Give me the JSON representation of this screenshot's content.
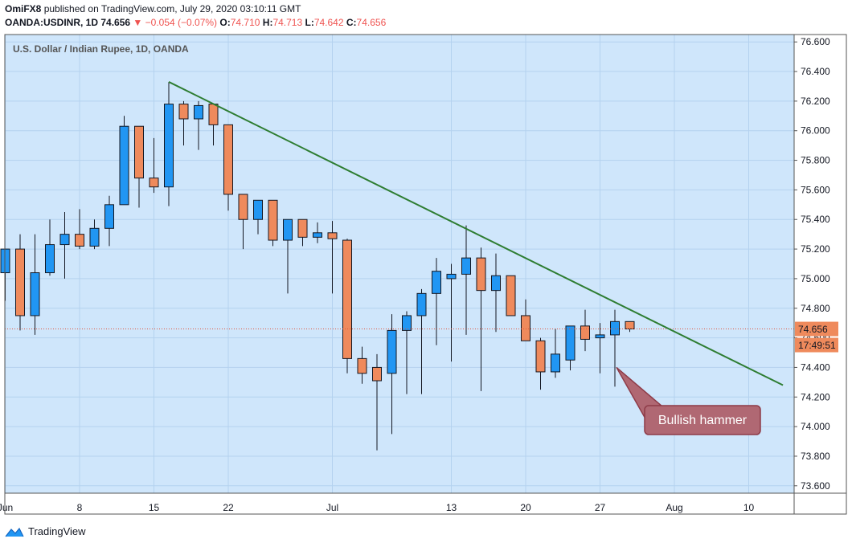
{
  "header": {
    "publisher": "OmiFX8",
    "published_text": "published on TradingView.com, July 29, 2020 03:10:11 GMT",
    "symbol": "OANDA:USDINR, 1D",
    "last": "74.656",
    "change_arrow": "▼",
    "change": "−0.054 (−0.07%)",
    "o_label": "O:",
    "o_value": "74.710",
    "h_label": "H:",
    "h_value": "74.713",
    "l_label": "L:",
    "l_value": "74.642",
    "c_label": "C:",
    "c_value": "74.656"
  },
  "colors": {
    "background": "#cfe6fb",
    "grid": "#b4d2ef",
    "up": "#2196f3",
    "down": "#ef8a5c",
    "wick": "#131722",
    "trendline": "#2e7d32",
    "price_tag": "#ef8a5c",
    "callout_fill": "#b06873",
    "callout_border": "#8e3b48"
  },
  "chart_data": {
    "type": "candlestick",
    "title": "U.S. Dollar / Indian Rupee, 1D, OANDA",
    "ylim": [
      73.55,
      76.65
    ],
    "y_ticks": [
      "76.600",
      "76.400",
      "76.200",
      "76.000",
      "75.800",
      "75.600",
      "75.400",
      "75.200",
      "75.000",
      "74.800",
      "74.600",
      "74.400",
      "74.200",
      "74.000",
      "73.800",
      "73.600"
    ],
    "x_ticks": [
      {
        "label": "Jun",
        "index": 0
      },
      {
        "label": "8",
        "index": 5
      },
      {
        "label": "15",
        "index": 10
      },
      {
        "label": "22",
        "index": 15
      },
      {
        "label": "Jul",
        "index": 22
      },
      {
        "label": "13",
        "index": 30
      },
      {
        "label": "20",
        "index": 35
      },
      {
        "label": "27",
        "index": 40
      },
      {
        "label": "Aug",
        "index": 45
      },
      {
        "label": "10",
        "index": 50
      }
    ],
    "candles": [
      {
        "o": 75.04,
        "h": 75.2,
        "l": 74.85,
        "c": 75.2
      },
      {
        "o": 75.2,
        "h": 75.3,
        "l": 74.65,
        "c": 74.75
      },
      {
        "o": 74.75,
        "h": 75.3,
        "l": 74.62,
        "c": 75.04
      },
      {
        "o": 75.04,
        "h": 75.4,
        "l": 75.02,
        "c": 75.23
      },
      {
        "o": 75.23,
        "h": 75.45,
        "l": 75.0,
        "c": 75.3
      },
      {
        "o": 75.3,
        "h": 75.47,
        "l": 75.2,
        "c": 75.22
      },
      {
        "o": 75.22,
        "h": 75.4,
        "l": 75.2,
        "c": 75.34
      },
      {
        "o": 75.34,
        "h": 75.56,
        "l": 75.22,
        "c": 75.5
      },
      {
        "o": 75.5,
        "h": 76.1,
        "l": 75.5,
        "c": 76.03
      },
      {
        "o": 76.03,
        "h": 76.02,
        "l": 75.48,
        "c": 75.68
      },
      {
        "o": 75.68,
        "h": 75.95,
        "l": 75.58,
        "c": 75.62
      },
      {
        "o": 75.62,
        "h": 76.33,
        "l": 75.49,
        "c": 76.18
      },
      {
        "o": 76.18,
        "h": 76.2,
        "l": 75.9,
        "c": 76.08
      },
      {
        "o": 76.08,
        "h": 76.2,
        "l": 75.87,
        "c": 76.17
      },
      {
        "o": 76.18,
        "h": 76.18,
        "l": 75.9,
        "c": 76.04
      },
      {
        "o": 76.04,
        "h": 76.03,
        "l": 75.46,
        "c": 75.57
      },
      {
        "o": 75.57,
        "h": 75.57,
        "l": 75.2,
        "c": 75.4
      },
      {
        "o": 75.4,
        "h": 75.53,
        "l": 75.3,
        "c": 75.53
      },
      {
        "o": 75.53,
        "h": 75.52,
        "l": 75.22,
        "c": 75.26
      },
      {
        "o": 75.26,
        "h": 75.4,
        "l": 74.9,
        "c": 75.4
      },
      {
        "o": 75.4,
        "h": 75.4,
        "l": 75.22,
        "c": 75.28
      },
      {
        "o": 75.28,
        "h": 75.38,
        "l": 75.24,
        "c": 75.31
      },
      {
        "o": 75.31,
        "h": 75.39,
        "l": 74.9,
        "c": 75.27
      },
      {
        "o": 75.26,
        "h": 75.27,
        "l": 74.36,
        "c": 74.46
      },
      {
        "o": 74.46,
        "h": 74.54,
        "l": 74.29,
        "c": 74.36
      },
      {
        "o": 74.4,
        "h": 74.49,
        "l": 73.84,
        "c": 74.31
      },
      {
        "o": 74.36,
        "h": 74.76,
        "l": 73.95,
        "c": 74.65
      },
      {
        "o": 74.65,
        "h": 74.78,
        "l": 74.22,
        "c": 74.75
      },
      {
        "o": 74.75,
        "h": 74.93,
        "l": 74.22,
        "c": 74.9
      },
      {
        "o": 74.9,
        "h": 75.14,
        "l": 74.55,
        "c": 75.05
      },
      {
        "o": 75.0,
        "h": 75.1,
        "l": 74.44,
        "c": 75.03
      },
      {
        "o": 75.03,
        "h": 75.36,
        "l": 74.62,
        "c": 75.14
      },
      {
        "o": 75.14,
        "h": 75.21,
        "l": 74.24,
        "c": 74.92
      },
      {
        "o": 74.92,
        "h": 75.17,
        "l": 74.64,
        "c": 75.02
      },
      {
        "o": 75.02,
        "h": 75.02,
        "l": 74.75,
        "c": 74.75
      },
      {
        "o": 74.75,
        "h": 74.86,
        "l": 74.6,
        "c": 74.58
      },
      {
        "o": 74.58,
        "h": 74.6,
        "l": 74.25,
        "c": 74.37
      },
      {
        "o": 74.37,
        "h": 74.66,
        "l": 74.33,
        "c": 74.49
      },
      {
        "o": 74.45,
        "h": 74.67,
        "l": 74.38,
        "c": 74.68
      },
      {
        "o": 74.68,
        "h": 74.79,
        "l": 74.51,
        "c": 74.59
      },
      {
        "o": 74.6,
        "h": 74.7,
        "l": 74.36,
        "c": 74.62
      },
      {
        "o": 74.62,
        "h": 74.79,
        "l": 74.27,
        "c": 74.71
      },
      {
        "o": 74.71,
        "h": 74.71,
        "l": 74.64,
        "c": 74.66
      }
    ],
    "trendline": [
      {
        "index": 11,
        "y": 76.33
      },
      {
        "index": 52.3,
        "y": 74.28
      }
    ],
    "last_price_label": "74.656",
    "countdown_label": "17:49:51",
    "annotation": {
      "text": "Bullish hammer",
      "index": 41,
      "y": 74.4
    }
  },
  "footer": {
    "brand": "TradingView"
  }
}
